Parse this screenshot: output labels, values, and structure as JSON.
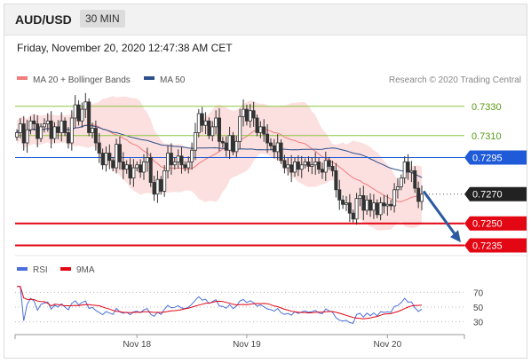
{
  "header": {
    "pair": "AUD/USD",
    "timeframe": "30 MIN"
  },
  "datetime": "Friday, November 20, 2020 12:47:38 AM CET",
  "chart_data": {
    "type": "candlestick",
    "legend": [
      {
        "name": "MA 20 + Bollinger Bands",
        "color": "#f07c7c"
      },
      {
        "name": "MA 50",
        "color": "#2c4f8c"
      }
    ],
    "source": "Research © 2020 Trading Central",
    "price_range": [
      0.7228,
      0.7342
    ],
    "levels": [
      {
        "label": "0.7330",
        "value": 0.733,
        "color": "#8cc63f",
        "style": "thin-line",
        "text_color": "#5a9a12"
      },
      {
        "label": "0.7310",
        "value": 0.731,
        "color": "#8cc63f",
        "style": "thin-line",
        "text_color": "#5a9a12"
      },
      {
        "label": "0.7295",
        "value": 0.7295,
        "color": "#1f5bd8",
        "style": "line-badge",
        "text_color": "#ffffff"
      },
      {
        "label": "0.7270",
        "value": 0.727,
        "color": "#222222",
        "style": "dotted-badge",
        "text_color": "#ffffff"
      },
      {
        "label": "0.7250",
        "value": 0.725,
        "color": "#e30613",
        "style": "thick-badge",
        "text_color": "#ffffff"
      },
      {
        "label": "0.7235",
        "value": 0.7235,
        "color": "#e30613",
        "style": "thick-badge",
        "text_color": "#ffffff"
      }
    ],
    "forecast_arrow": {
      "from": 0.7272,
      "to": 0.7237,
      "color": "#2c5aa0"
    },
    "close": [
      0.7312,
      0.7318,
      0.7305,
      0.7314,
      0.732,
      0.7318,
      0.7308,
      0.7316,
      0.7318,
      0.732,
      0.7308,
      0.7316,
      0.7312,
      0.732,
      0.7312,
      0.7305,
      0.7322,
      0.7331,
      0.732,
      0.7328,
      0.7333,
      0.7312,
      0.7315,
      0.7305,
      0.7298,
      0.729,
      0.7298,
      0.7293,
      0.7288,
      0.7304,
      0.7292,
      0.7287,
      0.729,
      0.7281,
      0.7288,
      0.729,
      0.7285,
      0.7292,
      0.7295,
      0.7278,
      0.727,
      0.728,
      0.7272,
      0.7286,
      0.7298,
      0.729,
      0.7292,
      0.7296,
      0.729,
      0.7288,
      0.7292,
      0.73,
      0.7312,
      0.7325,
      0.7317,
      0.732,
      0.731,
      0.7316,
      0.7322,
      0.7306,
      0.7305,
      0.73,
      0.731,
      0.7299,
      0.7306,
      0.7323,
      0.7328,
      0.732,
      0.7327,
      0.7322,
      0.7312,
      0.7316,
      0.7311,
      0.7305,
      0.7303,
      0.7299,
      0.7305,
      0.7293,
      0.7288,
      0.729,
      0.7285,
      0.7292,
      0.7287,
      0.729,
      0.7292,
      0.7289,
      0.729,
      0.7292,
      0.7287,
      0.7285,
      0.7293,
      0.7289,
      0.7286,
      0.7273,
      0.7266,
      0.7263,
      0.7264,
      0.7257,
      0.7253,
      0.7267,
      0.7269,
      0.7259,
      0.7266,
      0.7259,
      0.7264,
      0.7256,
      0.7264,
      0.7262,
      0.7263,
      0.7262,
      0.7273,
      0.7275,
      0.7281,
      0.7292,
      0.7285,
      0.7286,
      0.7274,
      0.7265,
      0.727
    ],
    "rsi": {
      "levels": [
        70,
        50,
        30
      ],
      "legend": [
        {
          "name": "RSI",
          "color": "#4a6fdc"
        },
        {
          "name": "9MA",
          "color": "#e30613"
        }
      ]
    },
    "x_ticks": [
      {
        "label": "Nov 18",
        "index": 35
      },
      {
        "label": "Nov 19",
        "index": 67
      },
      {
        "label": "Nov 20",
        "index": 108
      }
    ]
  }
}
